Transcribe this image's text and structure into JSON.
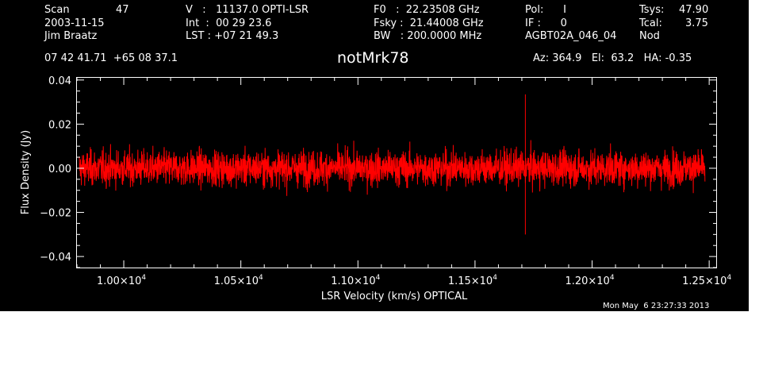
{
  "header": {
    "col1": {
      "l1": "Scan",
      "l1v": "47",
      "l2": "2003-11-15",
      "l3": "Jim Braatz"
    },
    "col2": {
      "l1": "V   :   11137.0 OPTI-LSR",
      "l2": "Int  :  00 29 23.6",
      "l3": "LST : +07 21 49.3"
    },
    "col3": {
      "l1": "F0   :  22.23508 GHz",
      "l2": "Fsky :  21.44008 GHz",
      "l3": "BW   : 200.0000 MHz"
    },
    "col4": {
      "l1": "Pol:      I",
      "l2": "IF :      0",
      "l3": "AGBT02A_046_04"
    },
    "col5": {
      "l1": "Tsys:",
      "l1v": "47.90",
      "l2": "Tcal:",
      "l2v": "3.75",
      "l3": "Nod"
    },
    "coords": "07 42 41.71  +65 08 37.1",
    "source": "notMrk78",
    "azel": "Az: 364.9   El:  63.2   HA: -0.35"
  },
  "timestamp": "Mon May  6 23:27:33 2013",
  "colors": {
    "background": "#000000",
    "foreground": "#ffffff",
    "trace": "#ff0000"
  },
  "chart_data": {
    "type": "line",
    "title": "notMrk78",
    "xlabel": "LSR Velocity (km/s) OPTICAL",
    "ylabel": "Flux Density (Jy)",
    "xlim": [
      9800,
      12530
    ],
    "ylim": [
      -0.045,
      0.041
    ],
    "x_ticks": [
      {
        "value": 10000,
        "mantissa": "1.00×10",
        "exp": "4"
      },
      {
        "value": 10500,
        "mantissa": "1.05×10",
        "exp": "4"
      },
      {
        "value": 11000,
        "mantissa": "1.10×10",
        "exp": "4"
      },
      {
        "value": 11500,
        "mantissa": "1.15×10",
        "exp": "4"
      },
      {
        "value": 12000,
        "mantissa": "1.20×10",
        "exp": "4"
      },
      {
        "value": 12500,
        "mantissa": "1.25×10",
        "exp": "4"
      }
    ],
    "y_ticks": [
      {
        "value": 0.04,
        "label": "0.04"
      },
      {
        "value": 0.02,
        "label": "0.02"
      },
      {
        "value": 0.0,
        "label": "0.00"
      },
      {
        "value": -0.02,
        "label": "−0.02"
      },
      {
        "value": -0.04,
        "label": "−0.04"
      }
    ],
    "series": [
      {
        "x_start": 9810,
        "x_end": 12482,
        "noise_rms": 0.004,
        "baseline": 0.0,
        "spike": {
          "x": 11715,
          "ymax": 0.0335,
          "ymin": -0.03
        }
      }
    ],
    "grid": false
  }
}
